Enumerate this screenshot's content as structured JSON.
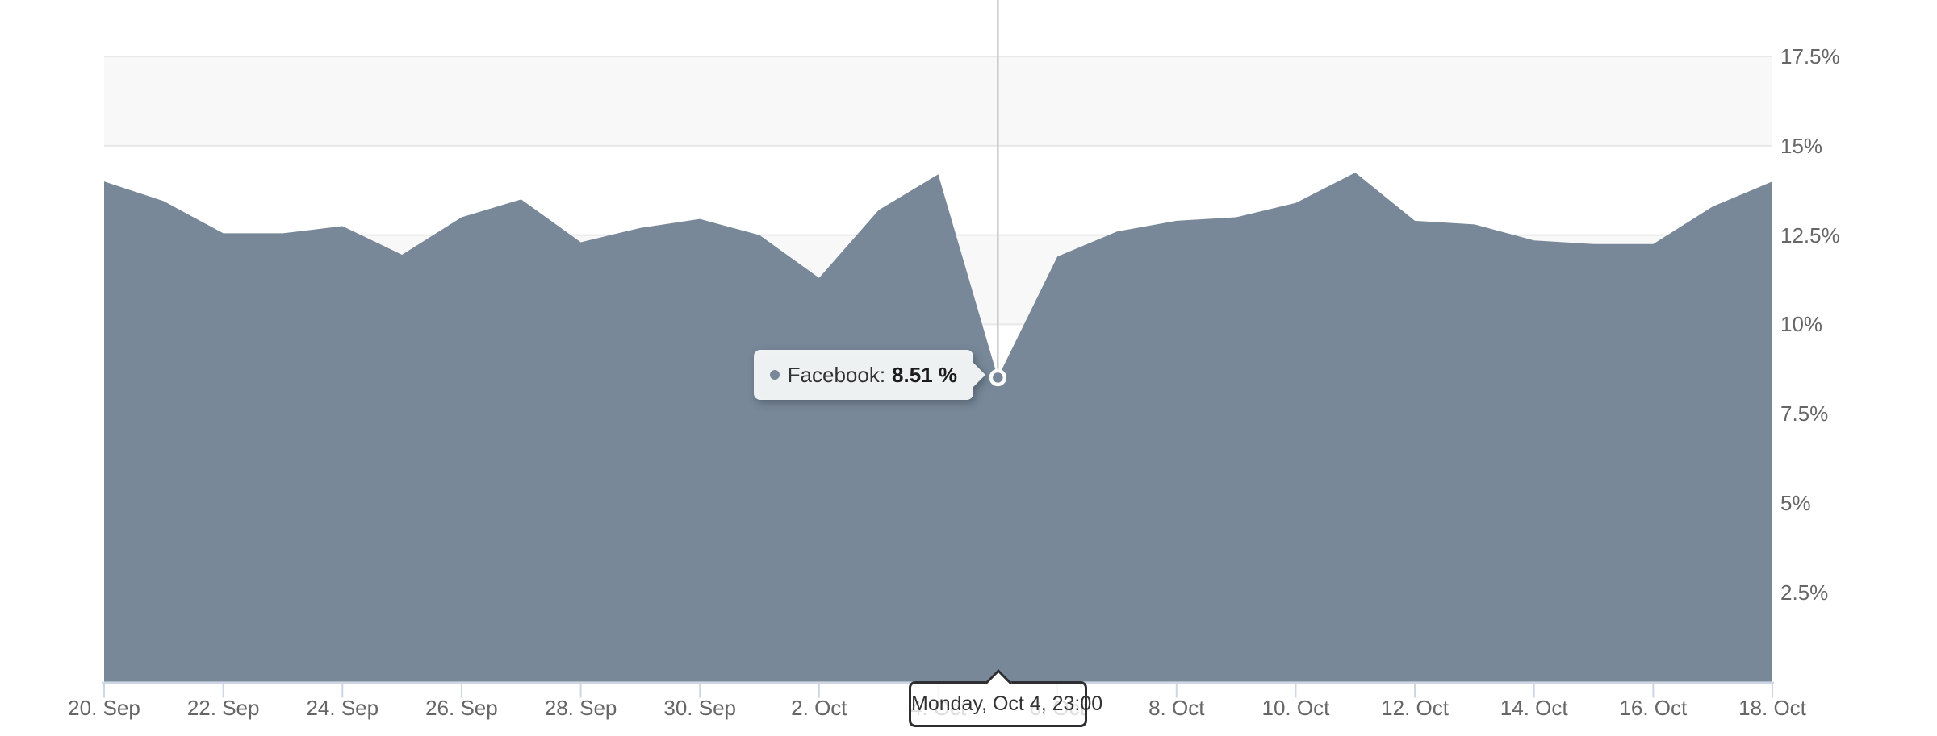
{
  "chart": {
    "series_name": "Facebook",
    "series_color": "#788898",
    "marker_stroke_color": "#ffffff",
    "band_color": "#f8f8f8",
    "grid_color": "#e8e8e8",
    "axis_line_color": "#ccd6e4",
    "crosshair_color": "#cbcbcb",
    "label_color": "#666666"
  },
  "tooltip": {
    "series_label": "Facebook:",
    "value_text": "8.51 %"
  },
  "axis_tooltip": {
    "text": "Monday, Oct 4, 23:00"
  },
  "chart_data": {
    "type": "area",
    "title": "",
    "xlabel": "",
    "ylabel": "",
    "series_name": "Facebook",
    "unit": "%",
    "x": [
      "20. Sep",
      "21. Sep",
      "22. Sep",
      "23. Sep",
      "24. Sep",
      "25. Sep",
      "26. Sep",
      "27. Sep",
      "28. Sep",
      "29. Sep",
      "30. Sep",
      "1. Oct",
      "2. Oct",
      "3. Oct",
      "4. Oct",
      "5. Oct",
      "6. Oct",
      "7. Oct",
      "8. Oct",
      "9. Oct",
      "10. Oct",
      "11. Oct",
      "12. Oct",
      "13. Oct",
      "14. Oct",
      "15. Oct",
      "16. Oct",
      "17. Oct",
      "18. Oct"
    ],
    "values": [
      14.0,
      13.45,
      12.55,
      12.55,
      12.75,
      11.95,
      13.0,
      13.5,
      12.3,
      12.7,
      12.95,
      12.5,
      11.3,
      13.2,
      14.2,
      8.51,
      11.9,
      12.6,
      12.9,
      13.0,
      13.4,
      14.25,
      12.9,
      12.8,
      12.35,
      12.25,
      12.25,
      13.3,
      14.0
    ],
    "hover_index": 15,
    "hover_point": {
      "label": "Monday, Oct 4, 23:00",
      "value": 8.51,
      "display": "8.51 %"
    },
    "xticks": [
      "20. Sep",
      "22. Sep",
      "24. Sep",
      "26. Sep",
      "28. Sep",
      "30. Sep",
      "2. Oct",
      "4. Oct",
      "6. Oct",
      "8. Oct",
      "10. Oct",
      "12. Oct",
      "14. Oct",
      "16. Oct",
      "18. Oct"
    ],
    "ytick_labels": [
      "17.5%",
      "15%",
      "12.5%",
      "10%",
      "7.5%",
      "5%",
      "2.5%"
    ],
    "ytick_values": [
      17.5,
      15,
      12.5,
      10,
      7.5,
      5,
      2.5
    ],
    "ylim": [
      0,
      19.1
    ],
    "grid": true,
    "grid_bands": [
      [
        15,
        17.5
      ],
      [
        10,
        12.5
      ],
      [
        5,
        7.5
      ],
      [
        0,
        2.5
      ]
    ],
    "legend": "none",
    "yaxis_side": "right"
  }
}
